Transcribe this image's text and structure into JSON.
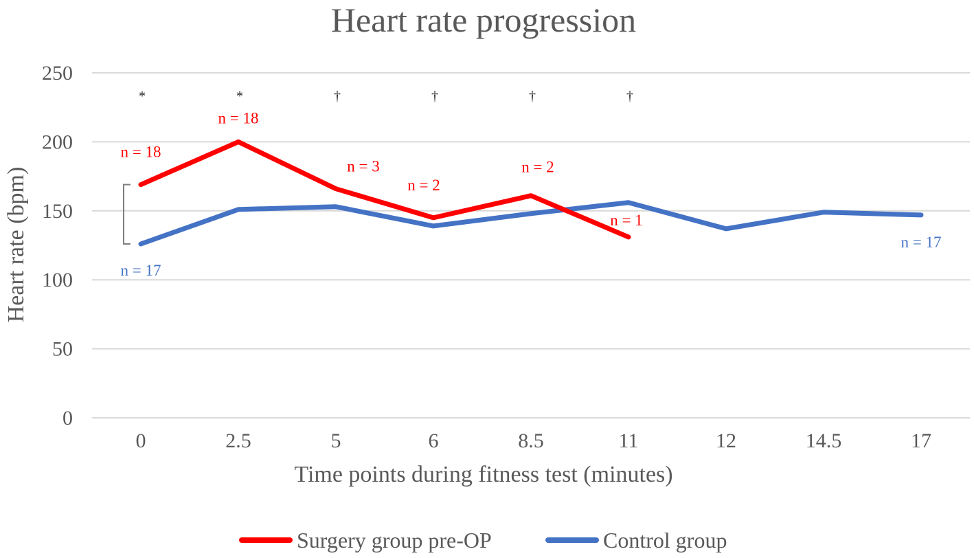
{
  "chart_data": {
    "type": "line",
    "title": "Heart rate progression",
    "xlabel": "Time points during fitness test (minutes)",
    "ylabel": "Heart rate (bpm)",
    "categories": [
      "0",
      "2.5",
      "5",
      "6",
      "8.5",
      "11",
      "12",
      "14.5",
      "17"
    ],
    "ylim": [
      0,
      250
    ],
    "yticks": [
      0,
      50,
      100,
      150,
      200,
      250
    ],
    "grid": true,
    "legend_position": "bottom",
    "series": [
      {
        "name": "Surgery group pre-OP",
        "color": "#ff0000",
        "values": [
          169,
          200,
          166,
          145,
          161,
          131,
          null,
          null,
          null
        ]
      },
      {
        "name": "Control group",
        "color": "#4472c4",
        "values": [
          126,
          151,
          153,
          139,
          148,
          156,
          137,
          149,
          147
        ]
      }
    ],
    "n_labels": [
      {
        "series": 0,
        "index": 0,
        "text": "n = 18",
        "position": "above"
      },
      {
        "series": 0,
        "index": 1,
        "text": "n = 18",
        "position": "above"
      },
      {
        "series": 0,
        "index": 2,
        "text": "n = 3",
        "position": "above"
      },
      {
        "series": 0,
        "index": 3,
        "text": "n = 2",
        "position": "above"
      },
      {
        "series": 0,
        "index": 4,
        "text": "n = 2",
        "position": "above"
      },
      {
        "series": 0,
        "index": 5,
        "text": "n = 1",
        "position": "above"
      },
      {
        "series": 1,
        "index": 0,
        "text": "n = 17",
        "position": "below"
      },
      {
        "series": 1,
        "index": 8,
        "text": "n = 17",
        "position": "below"
      }
    ],
    "significance_markers": [
      {
        "index": 0,
        "symbol": "*"
      },
      {
        "index": 1,
        "symbol": "*"
      },
      {
        "index": 2,
        "symbol": "†"
      },
      {
        "index": 3,
        "symbol": "†"
      },
      {
        "index": 4,
        "symbol": "†"
      },
      {
        "index": 5,
        "symbol": "†"
      }
    ],
    "bracket": {
      "index": 0,
      "from": 126,
      "to": 169,
      "color": "#7f7f7f"
    }
  }
}
